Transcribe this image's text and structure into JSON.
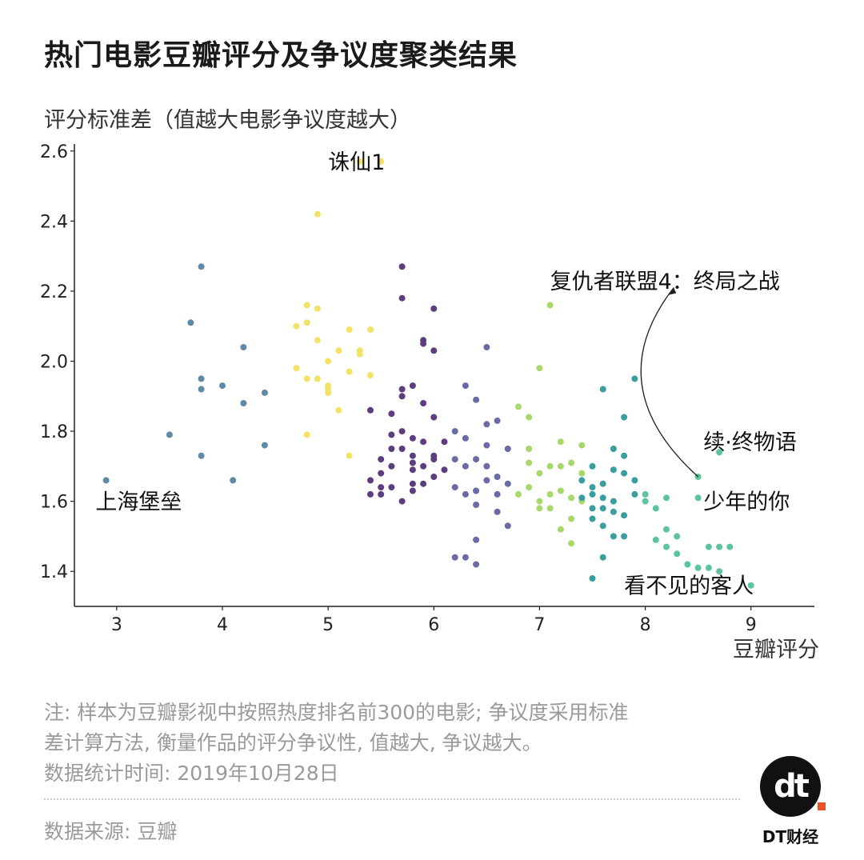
{
  "title": "热门电影豆瓣评分及争议度聚类结果",
  "notes": [
    "注: 样本为豆瓣影视中按照热度排名前300的电影; 争议度采用标准",
    "差计算方法, 衡量作品的评分争议性, 值越大, 争议越大。",
    "数据统计时间: 2019年10月28日"
  ],
  "source": "数据来源: 豆瓣",
  "brand": "DT财经",
  "logo_text": "dt",
  "chart_data": {
    "type": "scatter",
    "title": "热门电影豆瓣评分及争议度聚类结果",
    "xlabel": "豆瓣评分",
    "ylabel": "评分标准差（值越大电影争议度越大）",
    "xlim": [
      2.6,
      9.6
    ],
    "ylim": [
      1.3,
      2.62
    ],
    "xticks": [
      3,
      4,
      5,
      6,
      7,
      8,
      9
    ],
    "yticks": [
      1.4,
      1.6,
      1.8,
      2.0,
      2.2,
      2.4,
      2.6
    ],
    "ytick_labels": [
      "1.4",
      "1.6",
      "1.8",
      "2.0",
      "2.2",
      "2.4",
      "2.6"
    ],
    "grid": false,
    "colors": {
      "cluster1": "#5e8aa8",
      "cluster2": "#f2e266",
      "cluster3": "#5c3d7e",
      "cluster4": "#6a6aa6",
      "cluster5": "#a6d96a",
      "cluster6": "#3a9e9e",
      "cluster7": "#5cc49a"
    },
    "annotations": [
      {
        "text": "诛仙1",
        "x": 5.0,
        "y": 2.57
      },
      {
        "text": "上海堡垒",
        "x": 2.8,
        "y": 1.6
      },
      {
        "text": "复仇者联盟4：终局之战",
        "x": 7.1,
        "y": 2.23
      },
      {
        "text": "续·终物语",
        "x": 8.55,
        "y": 1.77
      },
      {
        "text": "少年的你",
        "x": 8.55,
        "y": 1.6
      },
      {
        "text": "看不见的客人",
        "x": 7.8,
        "y": 1.36
      }
    ],
    "series": [
      {
        "color_key": "cluster1",
        "x": [
          2.9,
          3.5,
          3.7,
          3.8,
          3.8,
          3.8,
          3.8,
          4.0,
          4.1,
          4.2,
          4.2,
          4.4,
          4.4
        ],
        "y": [
          1.66,
          1.79,
          2.11,
          2.27,
          1.95,
          1.92,
          1.73,
          1.93,
          1.66,
          2.04,
          1.88,
          1.91,
          1.76
        ]
      },
      {
        "color_key": "cluster2",
        "x": [
          4.7,
          4.8,
          4.8,
          4.9,
          4.9,
          5.0,
          5.0,
          5.0,
          5.1,
          5.1,
          5.2,
          5.2,
          5.3,
          5.3,
          5.4,
          5.4,
          4.7,
          4.8,
          4.9,
          5.0,
          4.8,
          5.3,
          5.5,
          4.9,
          5.2
        ],
        "y": [
          2.1,
          2.16,
          2.11,
          2.15,
          2.06,
          2.0,
          1.93,
          1.91,
          2.03,
          1.86,
          2.09,
          1.97,
          2.57,
          2.02,
          2.09,
          1.96,
          1.98,
          1.95,
          2.42,
          1.92,
          1.79,
          2.03,
          2.57,
          1.95,
          1.73
        ]
      },
      {
        "color_key": "cluster3",
        "x": [
          5.4,
          5.4,
          5.4,
          5.5,
          5.5,
          5.5,
          5.6,
          5.6,
          5.6,
          5.7,
          5.7,
          5.7,
          5.7,
          5.8,
          5.8,
          5.8,
          5.8,
          5.9,
          5.9,
          5.9,
          6.0,
          6.0,
          6.0,
          6.1,
          6.1,
          5.7,
          5.8,
          5.9,
          6.0,
          5.6,
          5.7,
          5.8,
          5.5,
          5.9,
          6.0,
          5.7,
          5.6,
          5.8,
          5.9,
          6.0
        ],
        "y": [
          1.66,
          1.62,
          1.86,
          1.72,
          1.68,
          1.64,
          1.75,
          1.7,
          1.64,
          2.27,
          2.18,
          1.92,
          1.8,
          1.78,
          1.73,
          1.69,
          1.63,
          1.77,
          1.7,
          1.65,
          2.15,
          2.03,
          1.84,
          1.77,
          1.69,
          1.9,
          1.93,
          2.05,
          1.73,
          1.85,
          1.6,
          1.71,
          1.62,
          2.06,
          1.67,
          1.75,
          1.79,
          1.65,
          1.88,
          1.72
        ]
      },
      {
        "color_key": "cluster5",
        "x": [
          6.8,
          6.8,
          6.9,
          6.9,
          6.9,
          7.0,
          7.0,
          7.0,
          7.1,
          7.1,
          7.1,
          7.2,
          7.2,
          7.2,
          7.3,
          7.3,
          7.3,
          7.4,
          7.4,
          7.1,
          7.0,
          6.9,
          7.2,
          7.3,
          7.4
        ],
        "y": [
          1.87,
          1.62,
          1.84,
          1.75,
          1.64,
          1.98,
          1.68,
          1.58,
          2.16,
          1.7,
          1.62,
          1.77,
          1.63,
          1.52,
          1.71,
          1.61,
          1.48,
          1.76,
          1.68,
          1.58,
          1.6,
          1.71,
          1.7,
          1.55,
          1.6
        ]
      },
      {
        "color_key": "cluster4",
        "x": [
          6.2,
          6.2,
          6.3,
          6.3,
          6.3,
          6.4,
          6.4,
          6.4,
          6.5,
          6.5,
          6.5,
          6.6,
          6.6,
          6.7,
          6.7,
          6.4,
          6.3,
          6.5,
          6.2,
          6.6,
          6.4,
          6.7,
          6.3,
          6.5,
          6.2,
          6.6,
          6.4
        ],
        "y": [
          1.8,
          1.64,
          1.93,
          1.78,
          1.62,
          1.89,
          1.72,
          1.59,
          2.04,
          1.76,
          1.66,
          1.83,
          1.62,
          1.75,
          1.65,
          1.49,
          1.44,
          1.7,
          1.44,
          1.57,
          1.42,
          1.53,
          1.7,
          1.82,
          1.72,
          1.67,
          1.63
        ]
      },
      {
        "color_key": "cluster6",
        "x": [
          7.4,
          7.5,
          7.5,
          7.5,
          7.6,
          7.6,
          7.6,
          7.7,
          7.7,
          7.7,
          7.8,
          7.8,
          7.8,
          7.9,
          7.9,
          7.5,
          7.6,
          7.7,
          7.8,
          7.9,
          7.5,
          7.6,
          7.7,
          7.8,
          7.6,
          7.4,
          7.5
        ],
        "y": [
          1.66,
          1.7,
          1.62,
          1.55,
          1.92,
          1.65,
          1.58,
          1.75,
          1.6,
          1.5,
          1.84,
          1.68,
          1.56,
          1.95,
          1.66,
          1.38,
          1.44,
          1.57,
          1.5,
          1.62,
          1.64,
          1.61,
          1.69,
          1.73,
          1.53,
          1.61,
          1.58
        ]
      },
      {
        "color_key": "cluster7",
        "x": [
          8.0,
          8.1,
          8.1,
          8.2,
          8.2,
          8.3,
          8.3,
          8.4,
          8.5,
          8.5,
          8.6,
          8.7,
          8.7,
          8.8,
          9.0,
          8.6,
          8.2,
          8.0,
          8.5,
          8.7
        ],
        "y": [
          1.62,
          1.58,
          1.49,
          1.52,
          1.47,
          1.5,
          1.45,
          1.42,
          1.67,
          1.61,
          1.41,
          1.74,
          1.4,
          1.47,
          1.36,
          1.47,
          1.61,
          1.6,
          1.41,
          1.47
        ]
      }
    ]
  }
}
